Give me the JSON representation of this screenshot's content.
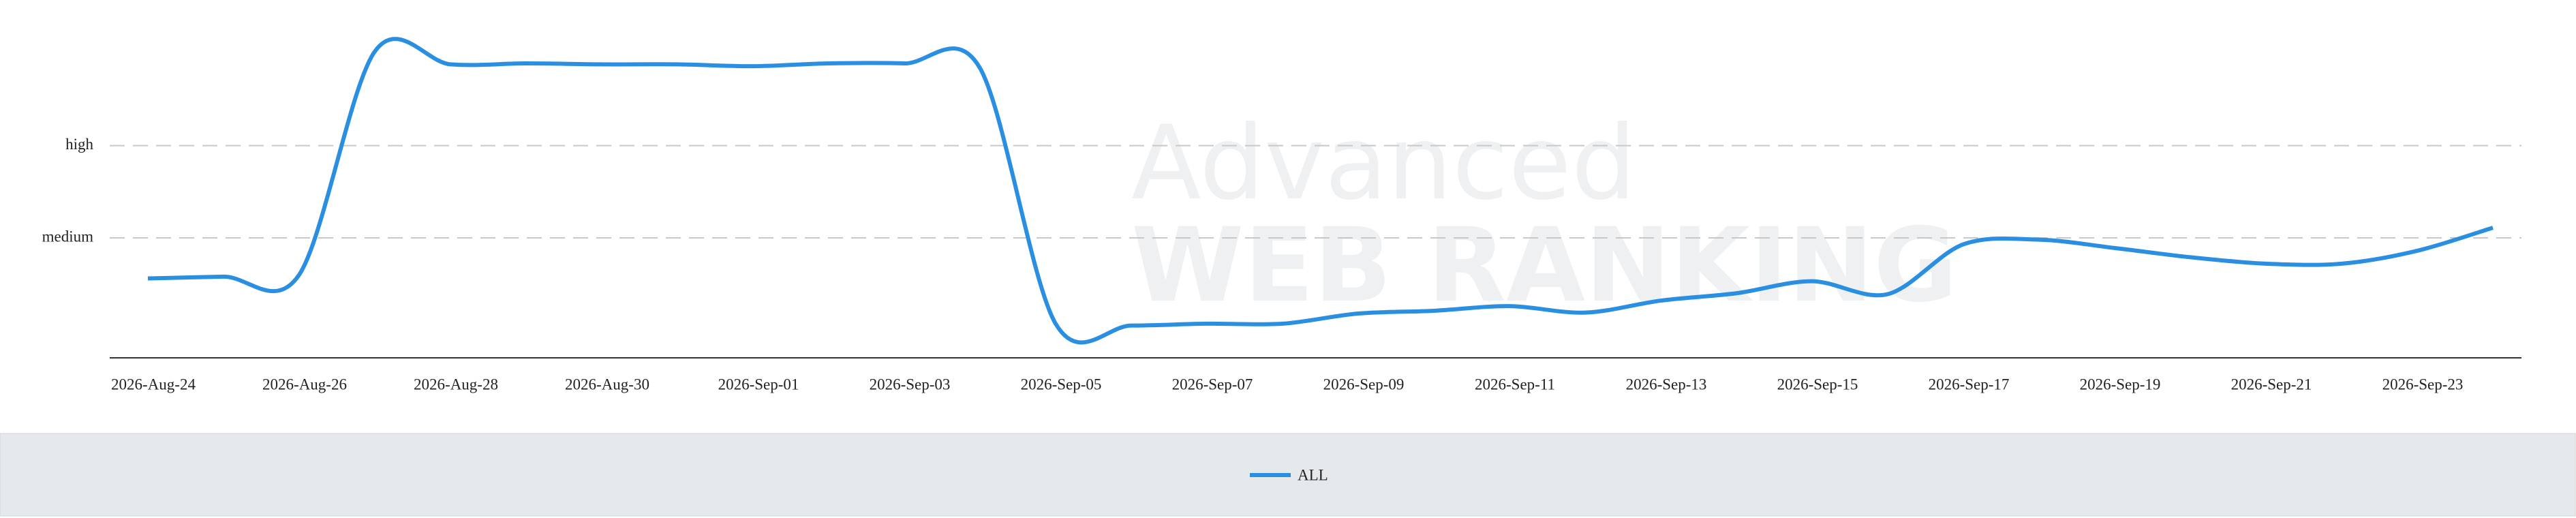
{
  "chart_data": {
    "type": "line",
    "watermark": [
      "Advanced",
      "WEB RANKING"
    ],
    "categories": [
      "2026-Aug-24",
      null,
      "2026-Aug-26",
      null,
      "2026-Aug-28",
      null,
      "2026-Aug-30",
      null,
      "2026-Sep-01",
      null,
      "2026-Sep-03",
      null,
      "2026-Sep-05",
      null,
      "2026-Sep-07",
      null,
      "2026-Sep-09",
      null,
      "2026-Sep-11",
      null,
      "2026-Sep-13",
      null,
      "2026-Sep-15",
      null,
      "2026-Sep-17",
      null,
      "2026-Sep-19",
      null,
      "2026-Sep-21",
      null,
      "2026-Sep-23",
      null
    ],
    "series": [
      {
        "name": "ALL",
        "color": "#2a8fe0",
        "values": [
          1.56,
          1.58,
          1.6,
          4.02,
          3.88,
          3.89,
          3.88,
          3.88,
          3.86,
          3.89,
          3.89,
          3.84,
          1.07,
          1.05,
          1.07,
          1.07,
          1.18,
          1.21,
          1.26,
          1.19,
          1.32,
          1.4,
          1.53,
          1.39,
          1.93,
          1.98,
          1.89,
          1.79,
          1.72,
          1.72,
          1.86,
          2.11
        ]
      }
    ],
    "ylim": [
      0.7,
      4.4
    ],
    "yticks": [
      {
        "value": 2,
        "label": "medium"
      },
      {
        "value": 3,
        "label": "high"
      }
    ],
    "grid": true
  }
}
